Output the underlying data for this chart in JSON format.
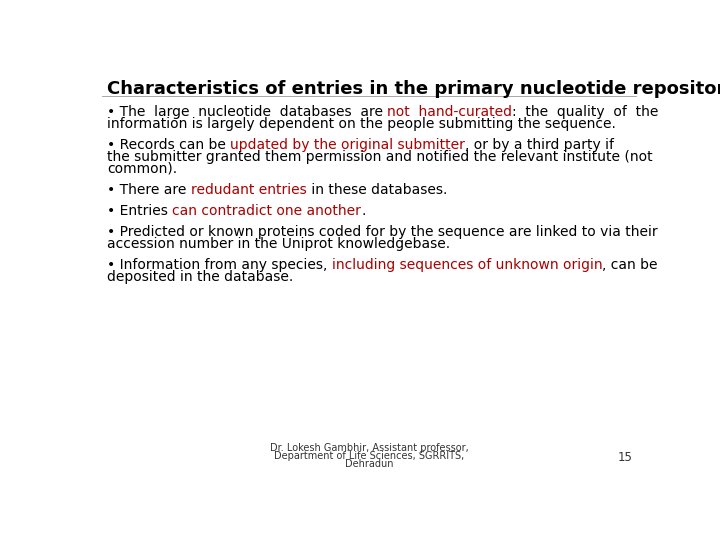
{
  "title": "Characteristics of entries in the primary nucleotide repositories",
  "title_fontsize": 13,
  "background_color": "#ffffff",
  "text_color": "#000000",
  "highlight_color": "#aa0000",
  "footer_text_line1": "Dr. Lokesh Gambhir, Assistant professor,",
  "footer_text_line2": "Department of Life Sciences, SGRRITS,",
  "footer_text_line3": "Dehradun",
  "page_number": "15",
  "bullet_fontsize": 10.0,
  "footer_fontsize": 7.0,
  "page_num_fontsize": 8.5,
  "bullets": [
    [
      {
        "text": "• The  large  nucleotide  databases  are ",
        "color": "#000000"
      },
      {
        "text": "not  hand-curated",
        "color": "#aa0000"
      },
      {
        "text": ":  the  quality  of  the\ninformation is largely dependent on the people submitting the sequence.",
        "color": "#000000"
      }
    ],
    [
      {
        "text": "• Records can be ",
        "color": "#000000"
      },
      {
        "text": "updated by the original submitter",
        "color": "#aa0000"
      },
      {
        "text": ", or by a third party if\nthe submitter granted them permission and notified the relevant institute (not\ncommon).",
        "color": "#000000"
      }
    ],
    [
      {
        "text": "• There are ",
        "color": "#000000"
      },
      {
        "text": "redudant entries",
        "color": "#aa0000"
      },
      {
        "text": " in these databases.",
        "color": "#000000"
      }
    ],
    [
      {
        "text": "• Entries ",
        "color": "#000000"
      },
      {
        "text": "can contradict one another",
        "color": "#aa0000"
      },
      {
        "text": ".",
        "color": "#000000"
      }
    ],
    [
      {
        "text": "• Predicted or known proteins coded for by the sequence are linked to via their\naccession number in the Uniprot knowledgebase.",
        "color": "#000000"
      }
    ],
    [
      {
        "text": "• Information from any species, ",
        "color": "#000000"
      },
      {
        "text": "including sequences of unknown origin",
        "color": "#aa0000"
      },
      {
        "text": ", can be\ndeposited in the database.",
        "color": "#000000"
      }
    ]
  ]
}
